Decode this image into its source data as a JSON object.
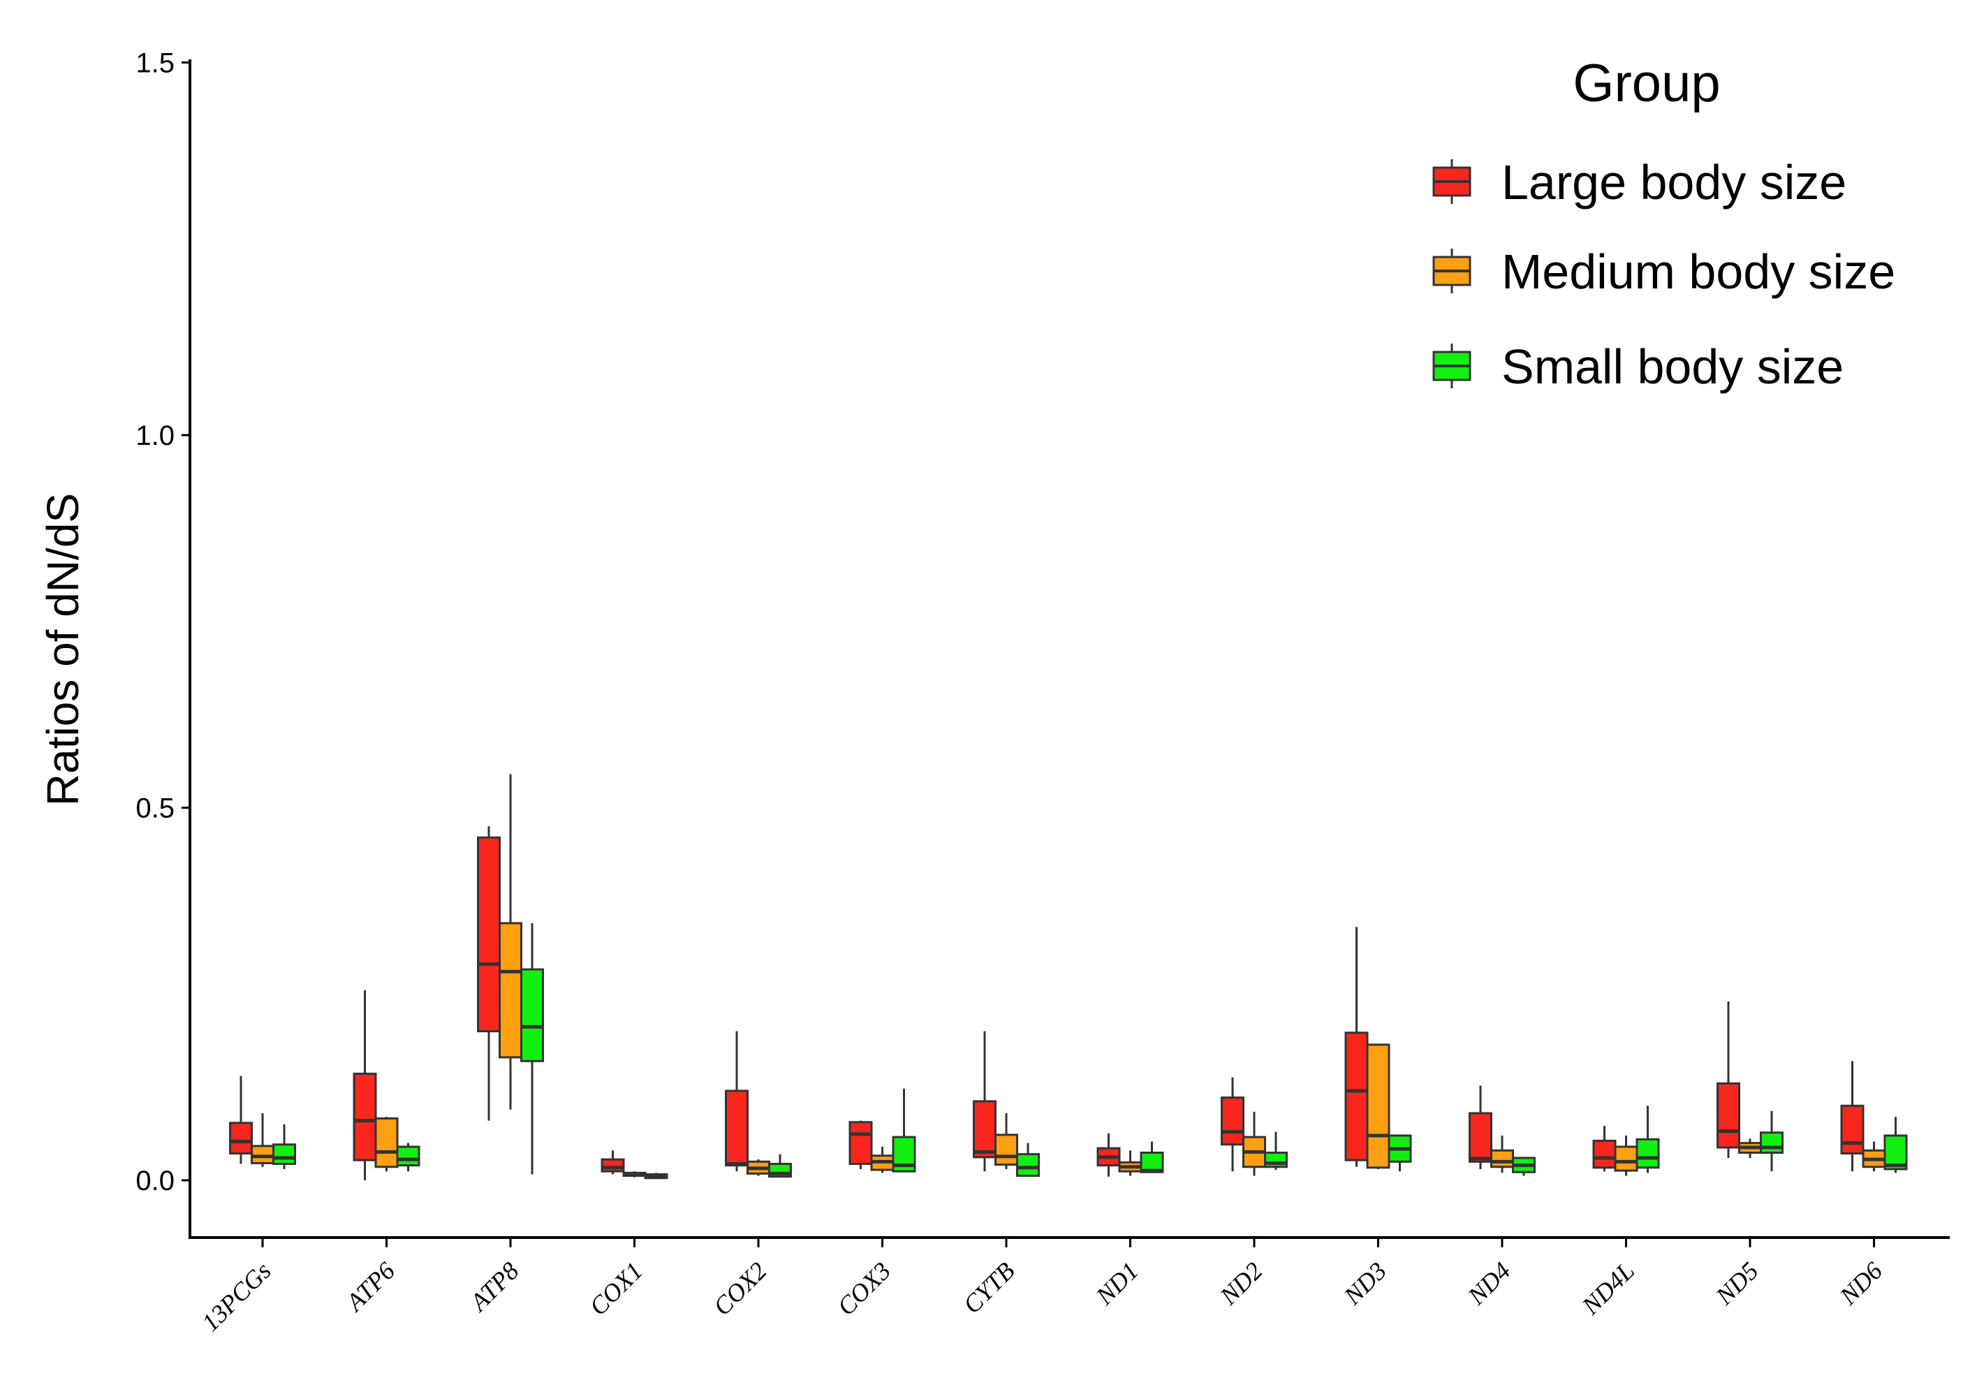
{
  "chart_data": {
    "type": "boxplot",
    "title": "",
    "xlabel": "",
    "ylabel": "Ratios of dN/dS",
    "ylim": [
      -0.07,
      1.5
    ],
    "yticks": [
      0.0,
      0.5,
      1.0,
      1.5
    ],
    "ytick_labels": [
      "0.0",
      "0.5",
      "1.0",
      "1.5"
    ],
    "categories": [
      "13PCGs",
      "ATP6",
      "ATP8",
      "COX1",
      "COX2",
      "COX3",
      "CYTB",
      "ND1",
      "ND2",
      "ND3",
      "ND4",
      "ND4L",
      "ND5",
      "ND6"
    ],
    "legend": {
      "title": "Group",
      "position": "top-right"
    },
    "series": [
      {
        "name": "Large body size",
        "color": "#f8261c",
        "boxes": [
          {
            "min": 0.022,
            "q1": 0.036,
            "median": 0.052,
            "q3": 0.077,
            "max": 0.14
          },
          {
            "min": 0.0,
            "q1": 0.027,
            "median": 0.08,
            "q3": 0.143,
            "max": 0.255
          },
          {
            "min": 0.08,
            "q1": 0.2,
            "median": 0.29,
            "q3": 0.46,
            "max": 0.475
          },
          {
            "min": 0.008,
            "q1": 0.012,
            "median": 0.017,
            "q3": 0.028,
            "max": 0.04
          },
          {
            "min": 0.012,
            "q1": 0.02,
            "median": 0.022,
            "q3": 0.12,
            "max": 0.2
          },
          {
            "min": 0.015,
            "q1": 0.022,
            "median": 0.062,
            "q3": 0.078,
            "max": 0.08
          },
          {
            "min": 0.012,
            "q1": 0.031,
            "median": 0.038,
            "q3": 0.106,
            "max": 0.2
          },
          {
            "min": 0.005,
            "q1": 0.02,
            "median": 0.031,
            "q3": 0.043,
            "max": 0.063
          },
          {
            "min": 0.012,
            "q1": 0.048,
            "median": 0.065,
            "q3": 0.111,
            "max": 0.138
          },
          {
            "min": 0.018,
            "q1": 0.027,
            "median": 0.12,
            "q3": 0.198,
            "max": 0.34
          },
          {
            "min": 0.015,
            "q1": 0.025,
            "median": 0.029,
            "q3": 0.09,
            "max": 0.127
          },
          {
            "min": 0.012,
            "q1": 0.017,
            "median": 0.03,
            "q3": 0.053,
            "max": 0.073
          },
          {
            "min": 0.03,
            "q1": 0.044,
            "median": 0.066,
            "q3": 0.13,
            "max": 0.24
          },
          {
            "min": 0.012,
            "q1": 0.036,
            "median": 0.05,
            "q3": 0.1,
            "max": 0.16
          }
        ]
      },
      {
        "name": "Medium body size",
        "color": "#ff9f12",
        "boxes": [
          {
            "min": 0.018,
            "q1": 0.023,
            "median": 0.032,
            "q3": 0.046,
            "max": 0.09
          },
          {
            "min": 0.012,
            "q1": 0.018,
            "median": 0.038,
            "q3": 0.083,
            "max": 0.085
          },
          {
            "min": 0.095,
            "q1": 0.165,
            "median": 0.28,
            "q3": 0.345,
            "max": 0.545
          },
          {
            "min": 0.004,
            "q1": 0.006,
            "median": 0.008,
            "q3": 0.01,
            "max": 0.012
          },
          {
            "min": 0.006,
            "q1": 0.009,
            "median": 0.016,
            "q3": 0.025,
            "max": 0.028
          },
          {
            "min": 0.01,
            "q1": 0.014,
            "median": 0.025,
            "q3": 0.033,
            "max": 0.045
          },
          {
            "min": 0.015,
            "q1": 0.021,
            "median": 0.032,
            "q3": 0.061,
            "max": 0.09
          },
          {
            "min": 0.006,
            "q1": 0.012,
            "median": 0.018,
            "q3": 0.024,
            "max": 0.04
          },
          {
            "min": 0.006,
            "q1": 0.018,
            "median": 0.038,
            "q3": 0.058,
            "max": 0.092
          },
          {
            "min": 0.015,
            "q1": 0.017,
            "median": 0.06,
            "q3": 0.182,
            "max": 0.183
          },
          {
            "min": 0.01,
            "q1": 0.018,
            "median": 0.025,
            "q3": 0.04,
            "max": 0.06
          },
          {
            "min": 0.006,
            "q1": 0.013,
            "median": 0.025,
            "q3": 0.045,
            "max": 0.06
          },
          {
            "min": 0.03,
            "q1": 0.037,
            "median": 0.044,
            "q3": 0.05,
            "max": 0.056
          },
          {
            "min": 0.012,
            "q1": 0.018,
            "median": 0.028,
            "q3": 0.04,
            "max": 0.052
          }
        ]
      },
      {
        "name": "Small body size",
        "color": "#12f012",
        "boxes": [
          {
            "min": 0.015,
            "q1": 0.022,
            "median": 0.03,
            "q3": 0.048,
            "max": 0.075
          },
          {
            "min": 0.012,
            "q1": 0.02,
            "median": 0.028,
            "q3": 0.045,
            "max": 0.05
          },
          {
            "min": 0.008,
            "q1": 0.16,
            "median": 0.206,
            "q3": 0.283,
            "max": 0.345
          },
          {
            "min": 0.002,
            "q1": 0.003,
            "median": 0.005,
            "q3": 0.008,
            "max": 0.01
          },
          {
            "min": 0.004,
            "q1": 0.005,
            "median": 0.009,
            "q3": 0.022,
            "max": 0.035
          },
          {
            "min": 0.012,
            "q1": 0.012,
            "median": 0.02,
            "q3": 0.058,
            "max": 0.123
          },
          {
            "min": 0.006,
            "q1": 0.006,
            "median": 0.017,
            "q3": 0.035,
            "max": 0.05
          },
          {
            "min": 0.01,
            "q1": 0.011,
            "median": 0.013,
            "q3": 0.037,
            "max": 0.052
          },
          {
            "min": 0.014,
            "q1": 0.018,
            "median": 0.023,
            "q3": 0.037,
            "max": 0.065
          },
          {
            "min": 0.012,
            "q1": 0.025,
            "median": 0.042,
            "q3": 0.06,
            "max": 0.06
          },
          {
            "min": 0.006,
            "q1": 0.011,
            "median": 0.02,
            "q3": 0.03,
            "max": 0.03
          },
          {
            "min": 0.01,
            "q1": 0.017,
            "median": 0.03,
            "q3": 0.055,
            "max": 0.1
          },
          {
            "min": 0.012,
            "q1": 0.037,
            "median": 0.044,
            "q3": 0.064,
            "max": 0.093
          },
          {
            "min": 0.01,
            "q1": 0.015,
            "median": 0.02,
            "q3": 0.06,
            "max": 0.085
          }
        ]
      }
    ]
  }
}
